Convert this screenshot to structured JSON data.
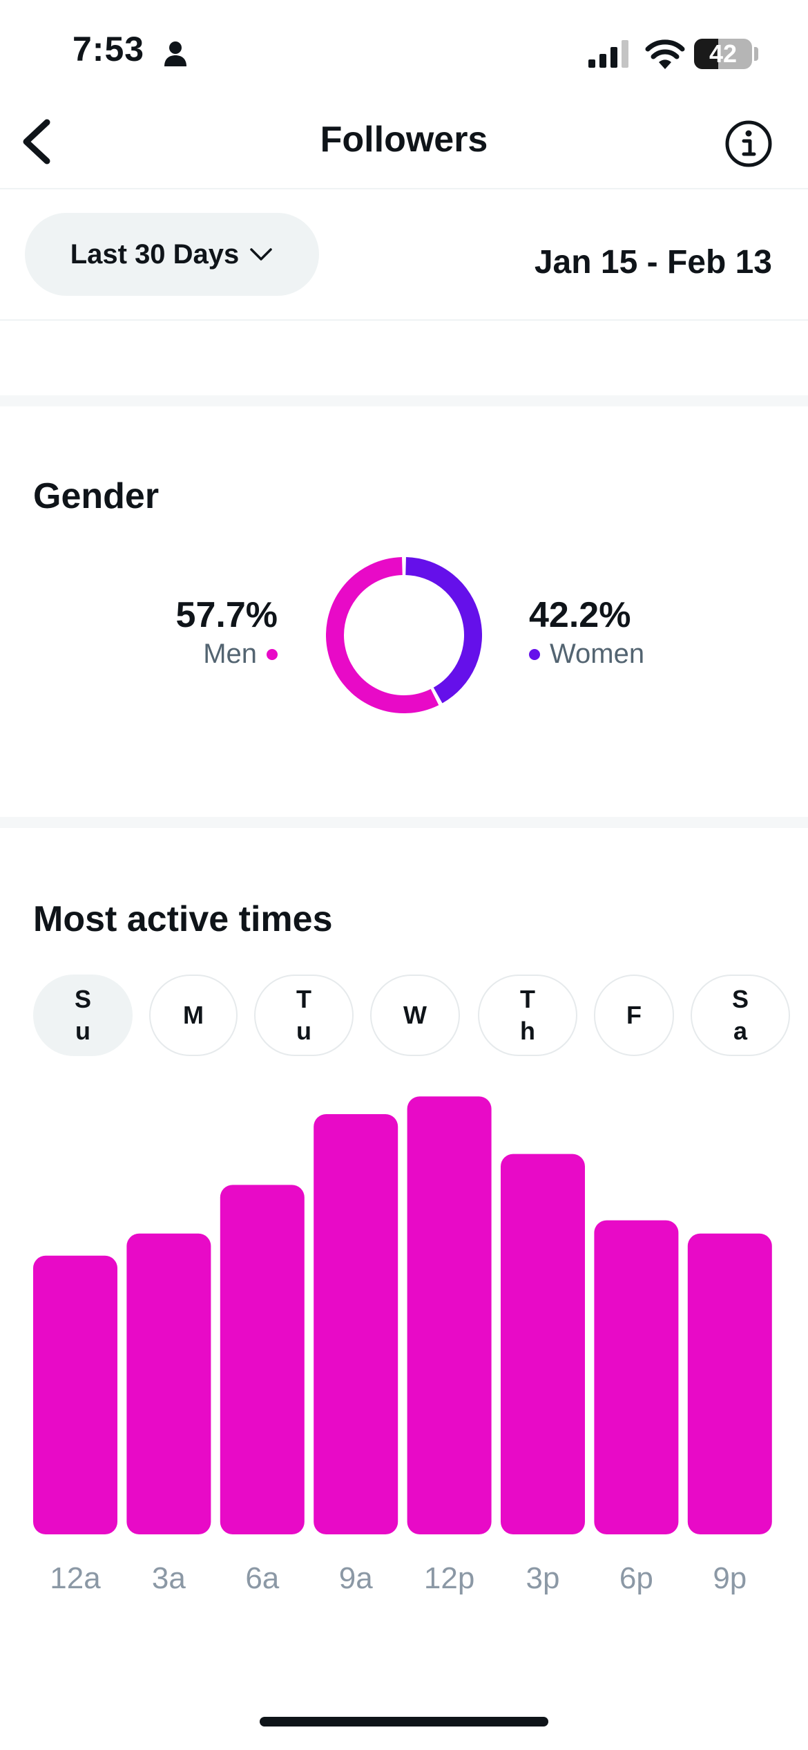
{
  "status_bar": {
    "time": "7:53",
    "battery": "42",
    "battery_level": 0.42
  },
  "header": {
    "title": "Followers"
  },
  "filter": {
    "range_label": "Last 30 Days",
    "date_range": "Jan 15 - Feb 13"
  },
  "gender": {
    "title": "Gender",
    "men": {
      "percent": "57.7%",
      "label": "Men",
      "value": 57.7,
      "color": "#e80ac7"
    },
    "women": {
      "percent": "42.2%",
      "label": "Women",
      "value": 42.2,
      "color": "#6510ea"
    }
  },
  "active_times": {
    "title": "Most active times",
    "days": [
      {
        "label": "S u",
        "selected": true
      },
      {
        "label": "M",
        "selected": false
      },
      {
        "label": "T u",
        "selected": false
      },
      {
        "label": "W",
        "selected": false
      },
      {
        "label": "T h",
        "selected": false
      },
      {
        "label": "F",
        "selected": false
      },
      {
        "label": "S a",
        "selected": false
      }
    ]
  },
  "chart_data": {
    "type": "bar",
    "categories": [
      "12a",
      "3a",
      "6a",
      "9a",
      "12p",
      "3p",
      "6p",
      "9p"
    ],
    "values": [
      63,
      68,
      79,
      95,
      99,
      86,
      71,
      68
    ],
    "ylim": [
      0,
      100
    ],
    "grid": false,
    "bar_color": "#e80ac7",
    "label_color": "#8b98a5"
  }
}
